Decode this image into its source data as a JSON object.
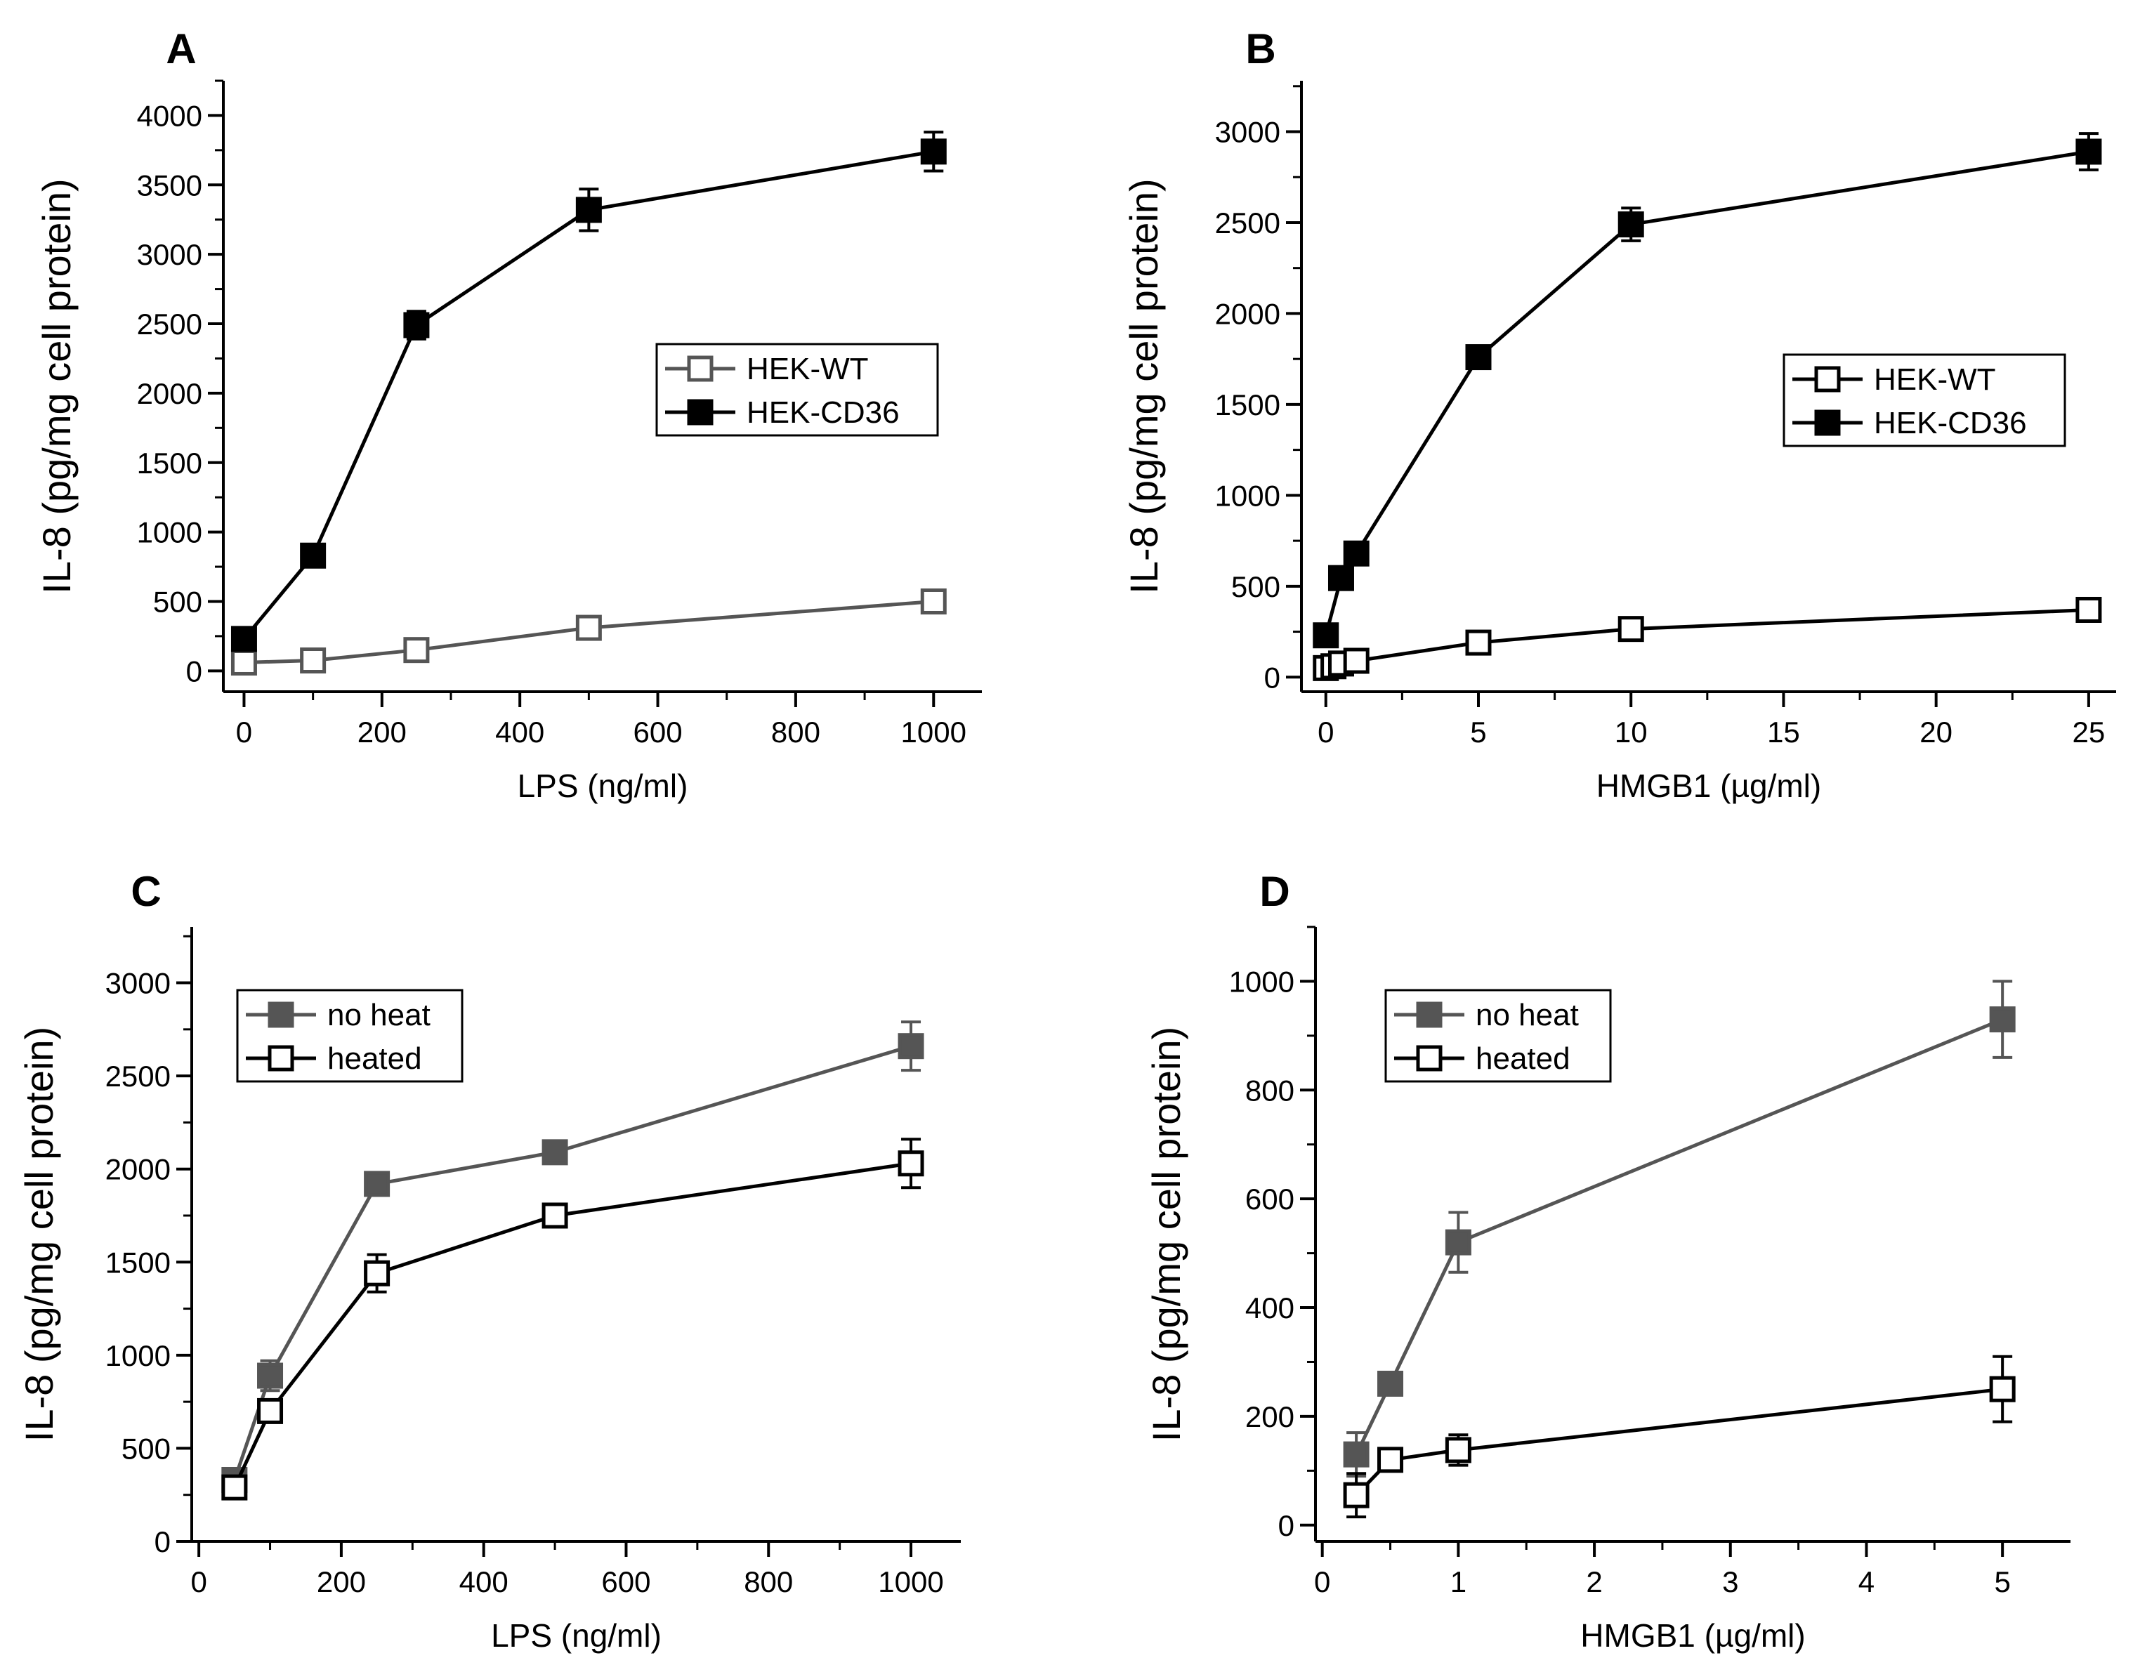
{
  "chart_data": [
    {
      "panel": "A",
      "type": "line",
      "xlabel": "LPS (ng/ml)",
      "ylabel": "IL-8 (pg/mg cell protein)",
      "xlim": [
        -30,
        1070
      ],
      "ylim": [
        -150,
        4250
      ],
      "xticks": [
        0,
        200,
        400,
        600,
        800,
        1000
      ],
      "yticks": [
        0,
        500,
        1000,
        1500,
        2000,
        2500,
        3000,
        3500,
        4000
      ],
      "legend_position": "center-right",
      "series": [
        {
          "name": "HEK-WT",
          "marker": "open-square",
          "color": "#555555",
          "x": [
            0,
            100,
            250,
            500,
            1000
          ],
          "y": [
            60,
            75,
            150,
            310,
            500
          ],
          "err": [
            25,
            30,
            40,
            45,
            40
          ]
        },
        {
          "name": "HEK-CD36",
          "marker": "filled-square",
          "color": "#000000",
          "x": [
            0,
            100,
            250,
            500,
            1000
          ],
          "y": [
            230,
            830,
            2490,
            3320,
            3740
          ],
          "err": [
            60,
            70,
            100,
            150,
            140
          ]
        }
      ]
    },
    {
      "panel": "B",
      "type": "line",
      "xlabel": "HMGB1 (µg/ml)",
      "ylabel": "IL-8 (pg/mg cell protein)",
      "xlim": [
        -0.8,
        25.9
      ],
      "ylim": [
        -80,
        3280
      ],
      "xticks": [
        0,
        5,
        10,
        15,
        20,
        25
      ],
      "yticks": [
        0,
        500,
        1000,
        1500,
        2000,
        2500,
        3000
      ],
      "legend_position": "center-right",
      "series": [
        {
          "name": "HEK-WT",
          "marker": "open-square",
          "color": "#000000",
          "x": [
            0,
            0.25,
            0.5,
            1,
            5,
            10,
            25
          ],
          "y": [
            50,
            60,
            75,
            90,
            190,
            265,
            370
          ],
          "err": [
            20,
            20,
            25,
            25,
            30,
            30,
            35
          ]
        },
        {
          "name": "HEK-CD36",
          "marker": "filled-square",
          "color": "#000000",
          "x": [
            0,
            0.5,
            1,
            5,
            10,
            25
          ],
          "y": [
            230,
            545,
            680,
            1760,
            2490,
            2890
          ],
          "err": [
            40,
            40,
            40,
            45,
            90,
            100
          ]
        }
      ]
    },
    {
      "panel": "C",
      "type": "line",
      "xlabel": "LPS (ng/ml)",
      "ylabel": "IL-8 (pg/mg cell protein)",
      "xlim": [
        -10,
        1070
      ],
      "ylim": [
        0,
        3300
      ],
      "xticks": [
        0,
        200,
        400,
        600,
        800,
        1000
      ],
      "yticks": [
        0,
        500,
        1000,
        1500,
        2000,
        2500,
        3000
      ],
      "legend_position": "top-left",
      "series": [
        {
          "name": "no heat",
          "marker": "filled-square",
          "color": "#555555",
          "x": [
            50,
            100,
            250,
            500,
            1000
          ],
          "y": [
            330,
            890,
            1920,
            2090,
            2660
          ],
          "err": [
            40,
            80,
            40,
            60,
            130
          ]
        },
        {
          "name": "heated",
          "marker": "open-square",
          "color": "#000000",
          "x": [
            50,
            100,
            250,
            500,
            1000
          ],
          "y": [
            290,
            700,
            1440,
            1750,
            2030
          ],
          "err": [
            40,
            50,
            100,
            60,
            130
          ]
        }
      ]
    },
    {
      "panel": "D",
      "type": "line",
      "xlabel": "HMGB1 (µg/ml)",
      "ylabel": "IL-8 (pg/mg cell protein)",
      "xlim": [
        -0.05,
        5.5
      ],
      "ylim": [
        -30,
        1100
      ],
      "xticks": [
        0,
        1,
        2,
        3,
        4,
        5
      ],
      "yticks": [
        0,
        200,
        400,
        600,
        800,
        1000
      ],
      "legend_position": "top-left",
      "series": [
        {
          "name": "no heat",
          "marker": "filled-square",
          "color": "#555555",
          "x": [
            0.25,
            0.5,
            1,
            5
          ],
          "y": [
            130,
            260,
            520,
            930
          ],
          "err": [
            40,
            15,
            55,
            70
          ]
        },
        {
          "name": "heated",
          "marker": "open-square",
          "color": "#000000",
          "x": [
            0.25,
            0.5,
            1,
            5
          ],
          "y": [
            55,
            120,
            138,
            250
          ],
          "err": [
            40,
            12,
            28,
            60
          ]
        }
      ]
    }
  ]
}
